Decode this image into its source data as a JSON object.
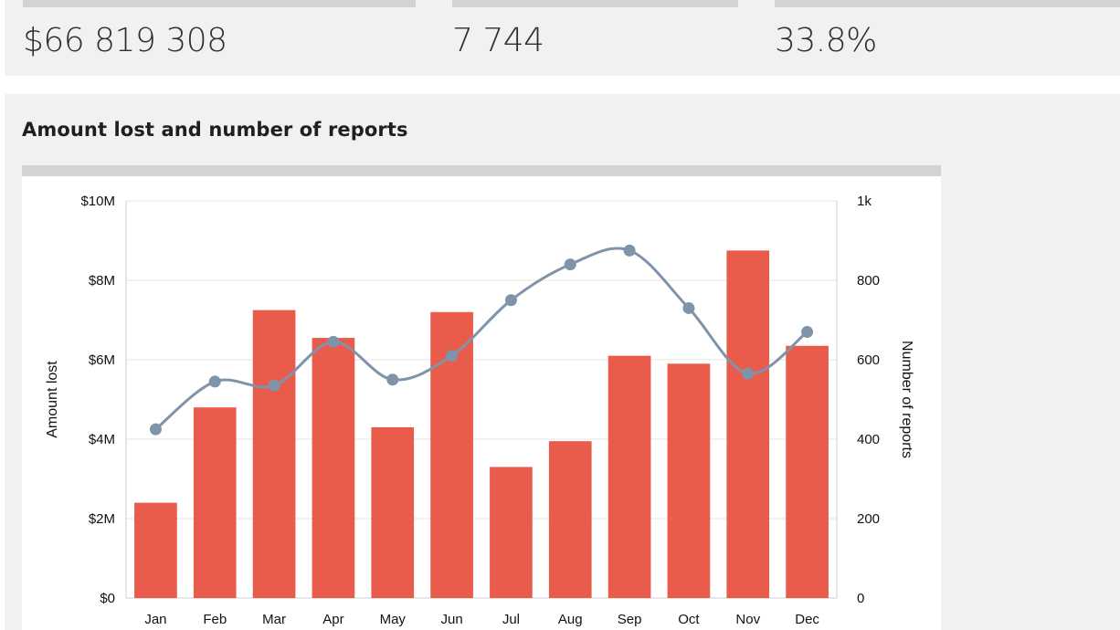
{
  "stats": [
    {
      "value": "$66 819 308"
    },
    {
      "value": "7 744"
    },
    {
      "value": "33.8%"
    }
  ],
  "panel": {
    "title": "Amount lost and number of reports"
  },
  "colors": {
    "bar": "#e95c4b",
    "line": "#7f93a9",
    "grid": "#e4e4e4",
    "axis": "#cfcfcf"
  },
  "chart_data": {
    "type": "bar",
    "categories": [
      "Jan",
      "Feb",
      "Mar",
      "Apr",
      "May",
      "Jun",
      "Jul",
      "Aug",
      "Sep",
      "Oct",
      "Nov",
      "Dec"
    ],
    "series": [
      {
        "type": "bar",
        "axis": "left",
        "values": [
          2.4,
          4.8,
          7.25,
          6.55,
          4.3,
          7.2,
          3.3,
          3.95,
          6.1,
          5.9,
          8.75,
          6.35
        ]
      },
      {
        "type": "line",
        "axis": "right",
        "values": [
          425,
          545,
          535,
          645,
          550,
          610,
          750,
          840,
          875,
          730,
          565,
          670
        ]
      }
    ],
    "ylabel": "Amount lost",
    "y2label": "Number of reports",
    "ylim": [
      0,
      10
    ],
    "y2lim": [
      0,
      1000
    ],
    "yticks": [
      "$0",
      "$2M",
      "$4M",
      "$6M",
      "$8M",
      "$10M"
    ],
    "y2ticks": [
      "0",
      "200",
      "400",
      "600",
      "800",
      "1k"
    ],
    "grid": true
  }
}
